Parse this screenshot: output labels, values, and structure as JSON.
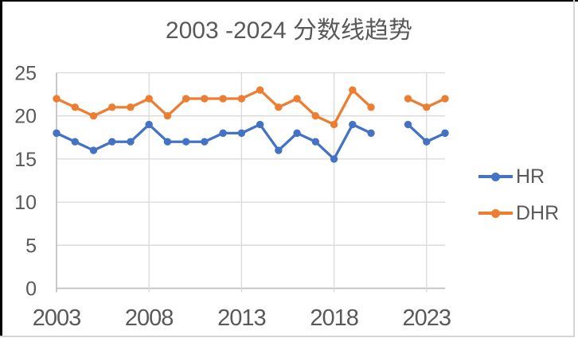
{
  "window": {
    "background": "#ffffff",
    "border_top_left_color": "#000000",
    "border_bottom_right_color": "#d6d6d6"
  },
  "chart_data": {
    "type": "line",
    "title": "2003 -2024 分数线趋势",
    "x": [
      2003,
      2004,
      2005,
      2006,
      2007,
      2008,
      2009,
      2010,
      2011,
      2012,
      2013,
      2014,
      2015,
      2016,
      2017,
      2018,
      2019,
      2020,
      2021,
      2022,
      2023,
      2024
    ],
    "series": [
      {
        "name": "HR",
        "color": "#4472C4",
        "values": [
          18,
          17,
          16,
          17,
          17,
          19,
          17,
          17,
          17,
          18,
          18,
          19,
          16,
          18,
          17,
          15,
          19,
          18,
          null,
          19,
          17,
          18
        ]
      },
      {
        "name": "DHR",
        "color": "#ED7D31",
        "values": [
          22,
          21,
          20,
          21,
          21,
          22,
          20,
          22,
          22,
          22,
          22,
          23,
          21,
          22,
          20,
          19,
          23,
          21,
          null,
          22,
          21,
          22
        ]
      }
    ],
    "x_ticks": [
      2003,
      2008,
      2013,
      2018,
      2023
    ],
    "y_ticks": [
      0,
      5,
      10,
      15,
      20,
      25
    ],
    "xlim": [
      2003,
      2024
    ],
    "ylim": [
      0,
      25
    ],
    "grid": true,
    "missing_x": [
      2021
    ],
    "legend_position": "right",
    "colors": {
      "text": "#595959",
      "grid": "#d9d9d9",
      "axis": "#bfbfbf"
    }
  }
}
